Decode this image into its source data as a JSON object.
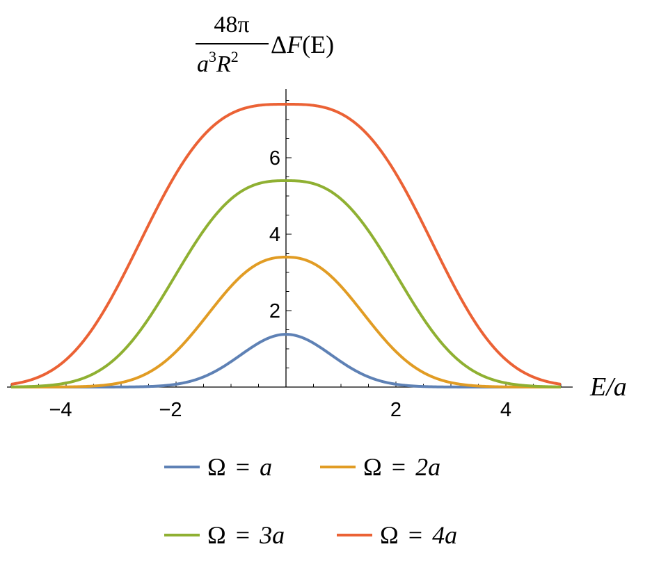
{
  "chart_data": {
    "type": "line",
    "ylabel": {
      "numerator": "48π",
      "denominator_base1": "a",
      "denominator_exp1": "3",
      "denominator_base2": "R",
      "denominator_exp2": "2",
      "suffix_delta": "Δ",
      "suffix_func": "F",
      "suffix_arg": "(E)"
    },
    "xlabel": "E/a",
    "xlim": [
      -5,
      5
    ],
    "ylim": [
      0,
      7.5
    ],
    "x_ticks": [
      -4,
      -2,
      2,
      4
    ],
    "x_tick_labels": [
      "−4",
      "−2",
      "2",
      "4"
    ],
    "y_ticks": [
      2,
      4,
      6
    ],
    "y_tick_labels": [
      "2",
      "4",
      "6"
    ],
    "grid": false,
    "legend_placement": "bottom",
    "series": [
      {
        "name": "Ω = a",
        "legend_omega": "Ω",
        "legend_eq": "=",
        "legend_rhs": "a",
        "peak": 1.38,
        "halfwidth": 1.0,
        "color": "#5e81b5"
      },
      {
        "name": "Ω = 2a",
        "legend_omega": "Ω",
        "legend_eq": "=",
        "legend_rhs": "2a",
        "peak": 3.4,
        "halfwidth": 2.0,
        "color": "#e19c24"
      },
      {
        "name": "Ω = 3a",
        "legend_omega": "Ω",
        "legend_eq": "=",
        "legend_rhs": "3a",
        "peak": 5.4,
        "halfwidth": 3.0,
        "color": "#8fb032"
      },
      {
        "name": "Ω = 4a",
        "legend_omega": "Ω",
        "legend_eq": "=",
        "legend_rhs": "4a",
        "peak": 7.4,
        "halfwidth": 4.0,
        "color": "#eb6235"
      }
    ]
  }
}
